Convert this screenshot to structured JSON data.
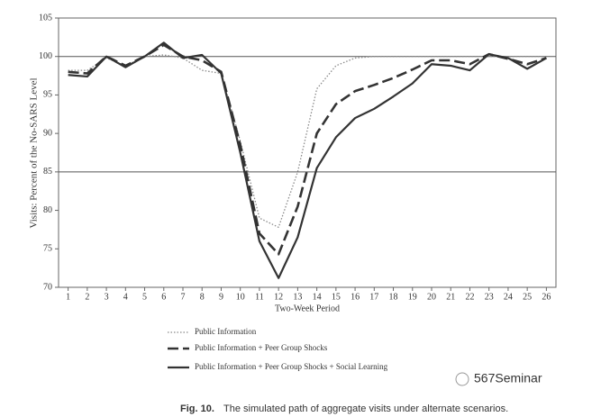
{
  "chart_data": {
    "type": "line",
    "y_label": "Visits: Percent of the No-SARS Level",
    "x_label": "Two-Week Period",
    "x": [
      1,
      2,
      3,
      4,
      5,
      6,
      7,
      8,
      9,
      10,
      11,
      12,
      13,
      14,
      15,
      16,
      17,
      18,
      19,
      20,
      21,
      22,
      23,
      24,
      25,
      26
    ],
    "xlim": [
      0.5,
      26.5
    ],
    "xticks": [
      1,
      2,
      3,
      4,
      5,
      6,
      7,
      8,
      9,
      10,
      11,
      12,
      13,
      14,
      15,
      16,
      17,
      18,
      19,
      20,
      21,
      22,
      23,
      24,
      25,
      26
    ],
    "ylim": [
      70,
      105
    ],
    "yticks": [
      70,
      75,
      80,
      85,
      90,
      95,
      100,
      105
    ],
    "reference_lines": [
      100,
      85
    ],
    "series": [
      {
        "name": "Public Information",
        "color": "#8a8a8a",
        "line_style": "dotted",
        "values": [
          98.2,
          98.2,
          99.8,
          98.8,
          100,
          100.2,
          99.8,
          98.2,
          97.8,
          89,
          79,
          77.8,
          85,
          95.8,
          98.8,
          99.8,
          100,
          100,
          100,
          100,
          100,
          100,
          100,
          100,
          100,
          100
        ]
      },
      {
        "name": "Public Information + Peer Group Shocks",
        "color": "#333333",
        "line_style": "dashed",
        "values": [
          98,
          97.8,
          100,
          98.8,
          100,
          101.5,
          100,
          99.5,
          98,
          88.5,
          77,
          74.3,
          80.5,
          90,
          93.8,
          95.5,
          96.3,
          97.2,
          98.3,
          99.5,
          99.5,
          99,
          100.3,
          99.7,
          99,
          99.8
        ]
      },
      {
        "name": "Public Information + Peer Group Shocks + Social Learning",
        "color": "#333333",
        "line_style": "solid",
        "values": [
          97.6,
          97.4,
          100,
          98.6,
          100,
          101.8,
          99.8,
          100.2,
          97.8,
          87.5,
          76,
          71.2,
          76.5,
          85.5,
          89.5,
          92,
          93.2,
          94.8,
          96.5,
          99,
          98.8,
          98.2,
          100.3,
          99.8,
          98.4,
          99.8
        ]
      }
    ],
    "caption_label": "Fig. 10.",
    "caption_text": "The simulated path of aggregate visits under alternate scenarios.",
    "watermark": "567Seminar"
  }
}
